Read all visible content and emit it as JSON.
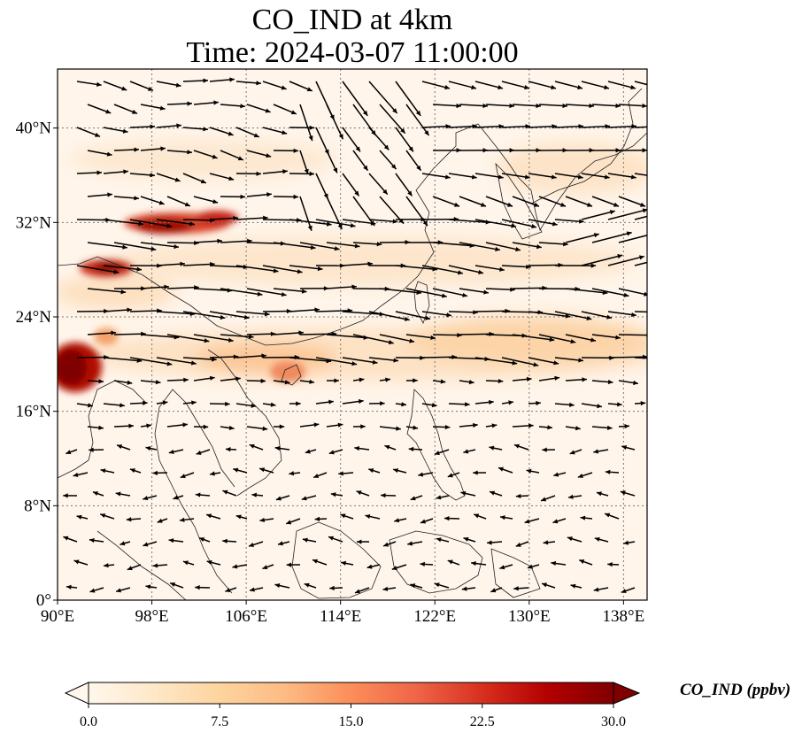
{
  "title": {
    "line1": "CO_IND at 4km",
    "line2": "Time: 2024-03-07 11:00:00"
  },
  "map": {
    "extent": {
      "lon": [
        90,
        140
      ],
      "lat": [
        0,
        45
      ]
    },
    "lon_ticks": [
      "90°E",
      "98°E",
      "106°E",
      "114°E",
      "122°E",
      "130°E",
      "138°E"
    ],
    "lat_ticks": [
      "0°",
      "8°N",
      "16°N",
      "24°N",
      "32°N",
      "40°N"
    ],
    "gridlines": "dotted",
    "colormap": "OrRd",
    "vector_field": "wind"
  },
  "colorbar": {
    "label": "CO_IND (ppbv)",
    "ticks": [
      "0.0",
      "7.5",
      "15.0",
      "22.5",
      "30.0"
    ],
    "min": 0,
    "max": 30,
    "extend": "both",
    "colors": [
      "#fff7ec",
      "#fee8c8",
      "#fdd49e",
      "#fdbb84",
      "#fc8d59",
      "#ef6548",
      "#d7301f",
      "#b30000",
      "#7f0000"
    ]
  }
}
